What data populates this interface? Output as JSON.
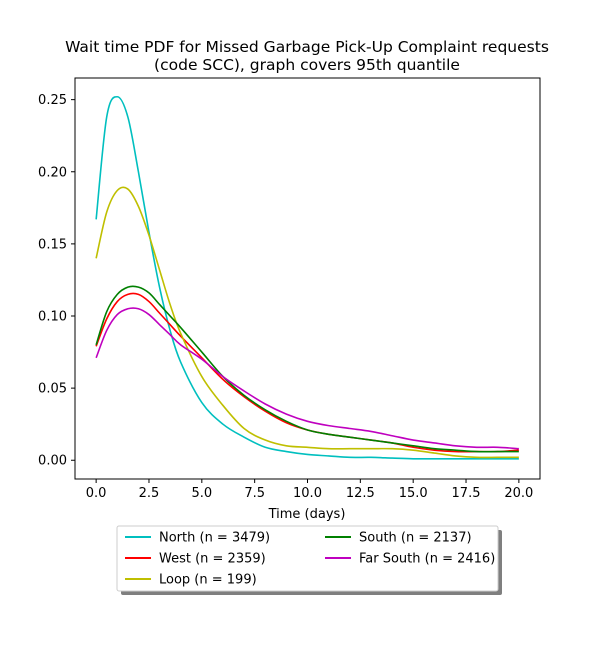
{
  "chart_data": {
    "type": "line",
    "title_lines": [
      "Wait time PDF for Missed Garbage Pick-Up Complaint  requests",
      "(code SCC), graph covers 95th quantile"
    ],
    "xlabel": "Time (days)",
    "ylabel": "",
    "xlim": [
      -1,
      21
    ],
    "ylim": [
      -0.013,
      0.265
    ],
    "xticks": [
      0.0,
      2.5,
      5.0,
      7.5,
      10.0,
      12.5,
      15.0,
      17.5,
      20.0
    ],
    "xtick_labels": [
      "0.0",
      "2.5",
      "5.0",
      "7.5",
      "10.0",
      "12.5",
      "15.0",
      "17.5",
      "20.0"
    ],
    "yticks": [
      0.0,
      0.05,
      0.1,
      0.15,
      0.2,
      0.25
    ],
    "ytick_labels": [
      "0.00",
      "0.05",
      "0.10",
      "0.15",
      "0.20",
      "0.25"
    ],
    "grid": false,
    "legend_placement": "below plot, two columns",
    "x": [
      0,
      0.5,
      1,
      1.5,
      2,
      2.5,
      3,
      3.5,
      4,
      5,
      6,
      7,
      8,
      9,
      10,
      11,
      12,
      13,
      14,
      15,
      16,
      17,
      18,
      19,
      20
    ],
    "series": [
      {
        "name": "North (n = 3479)",
        "color": "#00bfbf",
        "values": [
          0.167,
          0.238,
          0.252,
          0.238,
          0.2,
          0.158,
          0.12,
          0.09,
          0.068,
          0.04,
          0.025,
          0.016,
          0.009,
          0.006,
          0.004,
          0.003,
          0.002,
          0.002,
          0.0015,
          0.001,
          0.001,
          0.001,
          0.001,
          0.001,
          0.001
        ]
      },
      {
        "name": "West (n = 2359)",
        "color": "#ff0000",
        "values": [
          0.079,
          0.098,
          0.11,
          0.115,
          0.115,
          0.11,
          0.102,
          0.094,
          0.086,
          0.071,
          0.056,
          0.044,
          0.034,
          0.026,
          0.021,
          0.018,
          0.016,
          0.014,
          0.012,
          0.009,
          0.007,
          0.006,
          0.006,
          0.006,
          0.007
        ]
      },
      {
        "name": "Loop (n = 199)",
        "color": "#bfbf00",
        "values": [
          0.14,
          0.172,
          0.187,
          0.188,
          0.176,
          0.156,
          0.132,
          0.108,
          0.088,
          0.058,
          0.038,
          0.022,
          0.014,
          0.01,
          0.009,
          0.008,
          0.008,
          0.008,
          0.008,
          0.007,
          0.005,
          0.003,
          0.002,
          0.002,
          0.002
        ]
      },
      {
        "name": "South (n = 2137)",
        "color": "#008000",
        "values": [
          0.08,
          0.103,
          0.115,
          0.12,
          0.12,
          0.116,
          0.108,
          0.1,
          0.092,
          0.075,
          0.058,
          0.045,
          0.035,
          0.027,
          0.021,
          0.018,
          0.016,
          0.014,
          0.012,
          0.01,
          0.008,
          0.007,
          0.006,
          0.006,
          0.006
        ]
      },
      {
        "name": "Far South (n = 2416)",
        "color": "#bf00bf",
        "values": [
          0.071,
          0.09,
          0.101,
          0.105,
          0.105,
          0.101,
          0.094,
          0.087,
          0.08,
          0.07,
          0.058,
          0.048,
          0.039,
          0.032,
          0.027,
          0.024,
          0.022,
          0.02,
          0.017,
          0.014,
          0.012,
          0.01,
          0.009,
          0.009,
          0.008
        ]
      }
    ]
  }
}
